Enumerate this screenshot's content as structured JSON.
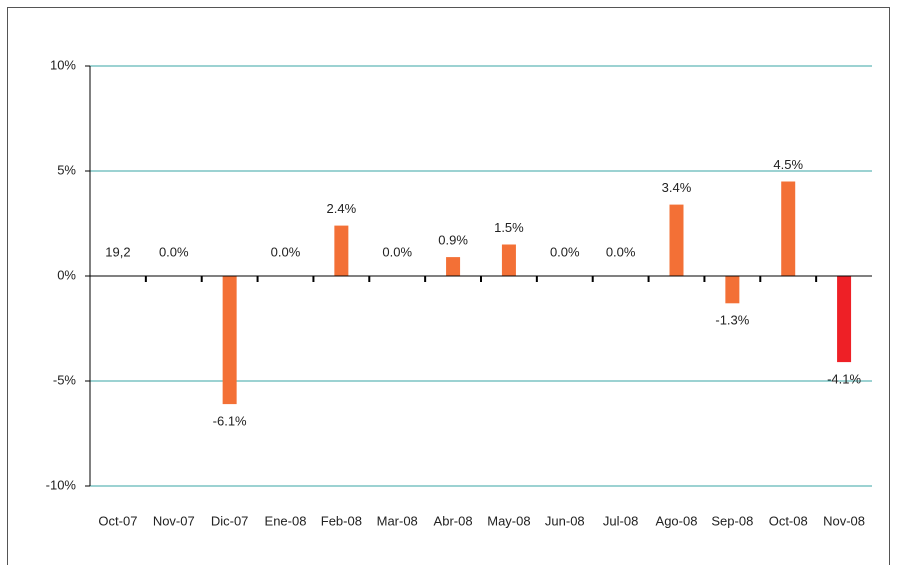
{
  "chart_data": {
    "type": "bar",
    "categories": [
      "Oct-07",
      "Nov-07",
      "Dic-07",
      "Ene-08",
      "Feb-08",
      "Mar-08",
      "Abr-08",
      "May-08",
      "Jun-08",
      "Jul-08",
      "Ago-08",
      "Sep-08",
      "Oct-08",
      "Nov-08"
    ],
    "values": [
      null,
      0,
      -6.1,
      0,
      2.4,
      0,
      0.9,
      1.5,
      0,
      0,
      3.4,
      -1.3,
      4.5,
      -4.1
    ],
    "value_labels": [
      null,
      "0.0%",
      "-6.1%",
      "0.0%",
      "2.4%",
      "0.0%",
      "0.9%",
      "1.5%",
      "0.0%",
      "0.0%",
      "3.4%",
      "-1.3%",
      "4.5%",
      "-4.1%"
    ],
    "colors": [
      "#f37036",
      "#f37036",
      "#f37036",
      "#f37036",
      "#f37036",
      "#f37036",
      "#f37036",
      "#f37036",
      "#f37036",
      "#f37036",
      "#f37036",
      "#f37036",
      "#f37036",
      "#ee2026"
    ],
    "annotations": [
      "19,2"
    ],
    "ylim": [
      -10,
      10
    ],
    "yticks": [
      {
        "value": -10,
        "label": "-10%"
      },
      {
        "value": -5,
        "label": "-5%"
      },
      {
        "value": 0,
        "label": "0%"
      },
      {
        "value": 5,
        "label": "5%"
      },
      {
        "value": 10,
        "label": "10%"
      }
    ],
    "grid": true,
    "grid_color": "#3aa6a6"
  }
}
